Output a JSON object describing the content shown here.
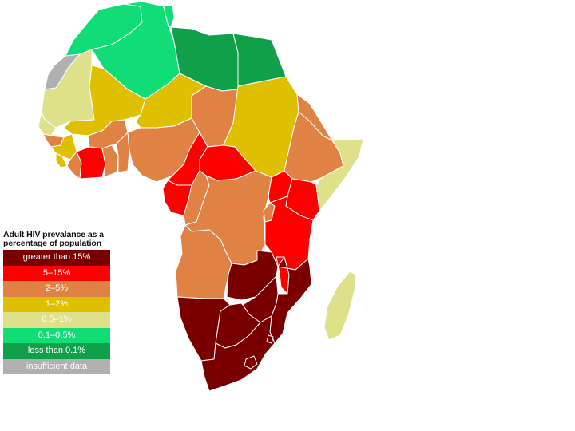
{
  "colors": {
    "greater_than_15": "#7a0000",
    "r5_15": "#ff0000",
    "r2_5": "#df8244",
    "r1_2": "#dfc000",
    "r05_1": "#dfe08a",
    "r01_05": "#11dd77",
    "less_than_01": "#10a04a",
    "insufficient": "#b0b0b0",
    "border": "#ffffff"
  },
  "legend": {
    "title": "Adult HIV prevalance as a percentage of population",
    "items": [
      {
        "label": "greater than 15%",
        "color": "#7a0000"
      },
      {
        "label": "5–15%",
        "color": "#ff0000"
      },
      {
        "label": "2–5%",
        "color": "#df8244"
      },
      {
        "label": "1–2%",
        "color": "#dfc000"
      },
      {
        "label": "0.5–1%",
        "color": "#dfe08a"
      },
      {
        "label": "0.1–0.5%",
        "color": "#11dd77"
      },
      {
        "label": "less than 0.1%",
        "color": "#10a04a"
      },
      {
        "label": "insufficient data",
        "color": "#b0b0b0"
      }
    ]
  },
  "regions": [
    {
      "name": "morocco",
      "category": "r01_05"
    },
    {
      "name": "western-sahara",
      "category": "insufficient"
    },
    {
      "name": "algeria",
      "category": "r01_05"
    },
    {
      "name": "tunisia",
      "category": "r01_05"
    },
    {
      "name": "libya",
      "category": "less_than_01"
    },
    {
      "name": "egypt",
      "category": "less_than_01"
    },
    {
      "name": "mauritania",
      "category": "r05_1"
    },
    {
      "name": "mali",
      "category": "r1_2"
    },
    {
      "name": "niger",
      "category": "r1_2"
    },
    {
      "name": "chad",
      "category": "r2_5"
    },
    {
      "name": "sudan",
      "category": "r1_2"
    },
    {
      "name": "senegal",
      "category": "r05_1"
    },
    {
      "name": "gambia-guinea-bissau",
      "category": "r2_5"
    },
    {
      "name": "guinea",
      "category": "r1_2"
    },
    {
      "name": "sierra-leone",
      "category": "r1_2"
    },
    {
      "name": "liberia",
      "category": "r2_5"
    },
    {
      "name": "burkina-faso",
      "category": "r2_5"
    },
    {
      "name": "cote-divoire",
      "category": "r5_15"
    },
    {
      "name": "ghana",
      "category": "r2_5"
    },
    {
      "name": "togo-benin",
      "category": "r2_5"
    },
    {
      "name": "nigeria",
      "category": "r2_5"
    },
    {
      "name": "cameroon",
      "category": "r5_15"
    },
    {
      "name": "central-african-republic",
      "category": "r5_15"
    },
    {
      "name": "equatorial-guinea-gabon",
      "category": "r5_15"
    },
    {
      "name": "congo",
      "category": "r2_5"
    },
    {
      "name": "dr-congo",
      "category": "r2_5"
    },
    {
      "name": "ethiopia",
      "category": "r2_5"
    },
    {
      "name": "eritrea-djibouti",
      "category": "r2_5"
    },
    {
      "name": "somalia",
      "category": "r05_1"
    },
    {
      "name": "uganda",
      "category": "r5_15"
    },
    {
      "name": "kenya",
      "category": "r5_15"
    },
    {
      "name": "rwanda-burundi",
      "category": "r2_5"
    },
    {
      "name": "tanzania",
      "category": "r5_15"
    },
    {
      "name": "malawi",
      "category": "r5_15"
    },
    {
      "name": "angola",
      "category": "r2_5"
    },
    {
      "name": "zambia",
      "category": "greater_than_15"
    },
    {
      "name": "zimbabwe",
      "category": "greater_than_15"
    },
    {
      "name": "mozambique",
      "category": "greater_than_15"
    },
    {
      "name": "namibia",
      "category": "greater_than_15"
    },
    {
      "name": "botswana",
      "category": "greater_than_15"
    },
    {
      "name": "south-africa",
      "category": "greater_than_15"
    },
    {
      "name": "lesotho",
      "category": "greater_than_15"
    },
    {
      "name": "swaziland",
      "category": "greater_than_15"
    },
    {
      "name": "madagascar",
      "category": "r05_1"
    }
  ]
}
